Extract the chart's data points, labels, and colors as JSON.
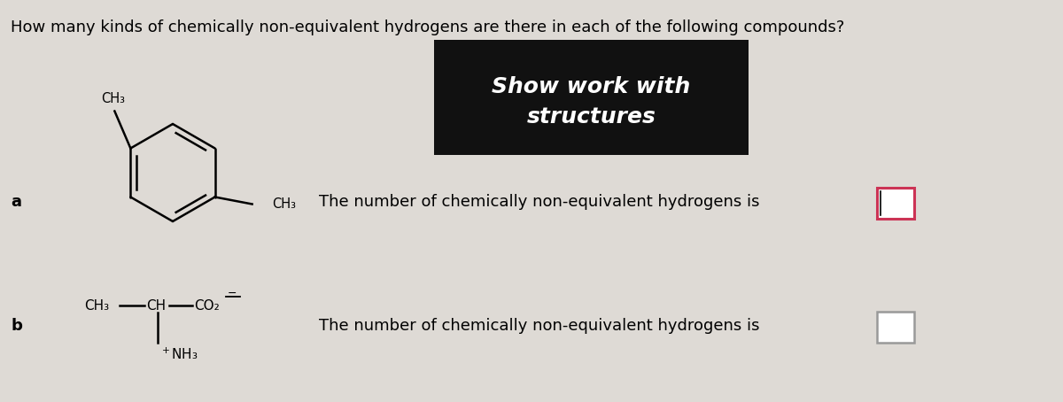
{
  "title": "How many kinds of chemically non-equivalent hydrogens are there in each of the following compounds?",
  "title_fontsize": 13,
  "bg_color": "#dedad5",
  "show_work_text": "Show work with\nstructures",
  "show_work_bg": "#111111",
  "show_work_color": "#ffffff",
  "show_work_fontsize": 18,
  "label_a": "a",
  "label_b": "b",
  "question_text_a": "The number of chemically non-equivalent hydrogens is",
  "question_text_b": "The number of chemically non-equivalent hydrogens is",
  "question_fontsize": 13,
  "box_color_a": "#cc3355",
  "box_color_b": "#999999"
}
